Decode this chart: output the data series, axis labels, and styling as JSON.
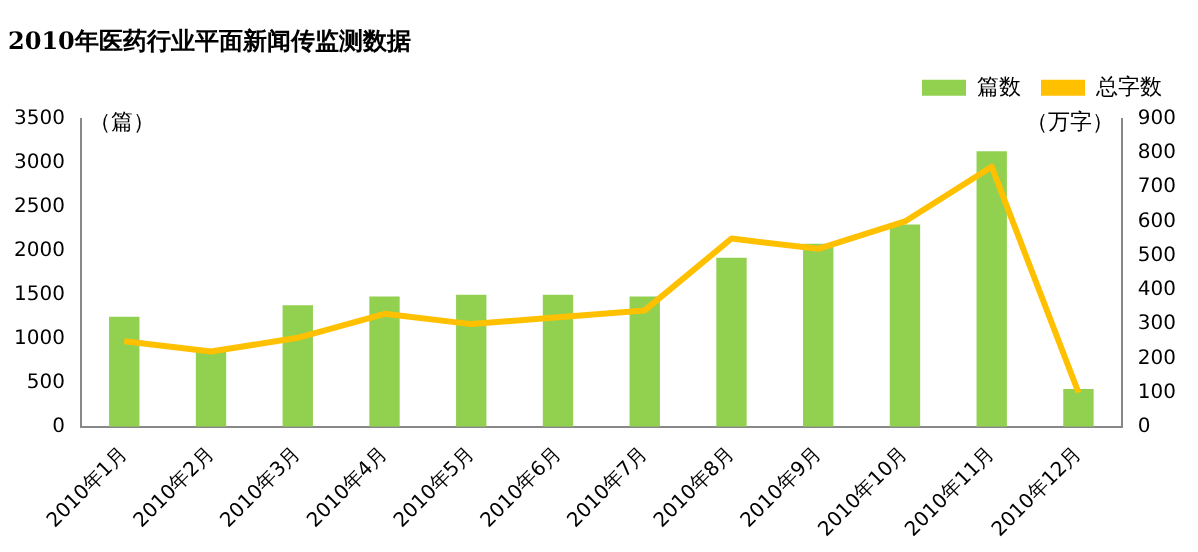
{
  "chart_data": {
    "type": "bar",
    "title": "2010年医药行业平面新闻传监测数据",
    "ylabel": "（篇）",
    "y2label": "（万字）",
    "categories": [
      "2010年1月",
      "2010年2月",
      "2010年3月",
      "2010年4月",
      "2010年5月",
      "2010年6月",
      "2010年7月",
      "2010年8月",
      "2010年9月",
      "2010年10月",
      "2010年11月",
      "2010年12月"
    ],
    "series": [
      {
        "name": "篇数",
        "color": "#92d050",
        "values": [
          1250,
          850,
          1380,
          1480,
          1500,
          1500,
          1480,
          1920,
          2080,
          2300,
          3130,
          430
        ]
      },
      {
        "name": "总字数",
        "type": "line",
        "axis": "y2",
        "color": "#ffc000",
        "values": [
          250,
          220,
          260,
          330,
          300,
          320,
          340,
          550,
          520,
          600,
          760,
          100
        ]
      }
    ],
    "ylim": [
      0,
      3500
    ],
    "yticks": [
      0,
      500,
      1000,
      1500,
      2000,
      2500,
      3000,
      3500
    ],
    "y2lim": [
      0,
      900
    ],
    "y2ticks": [
      0,
      100,
      200,
      300,
      400,
      500,
      600,
      700,
      800,
      900
    ],
    "grid": false,
    "legend": "top right",
    "marker": "none"
  }
}
